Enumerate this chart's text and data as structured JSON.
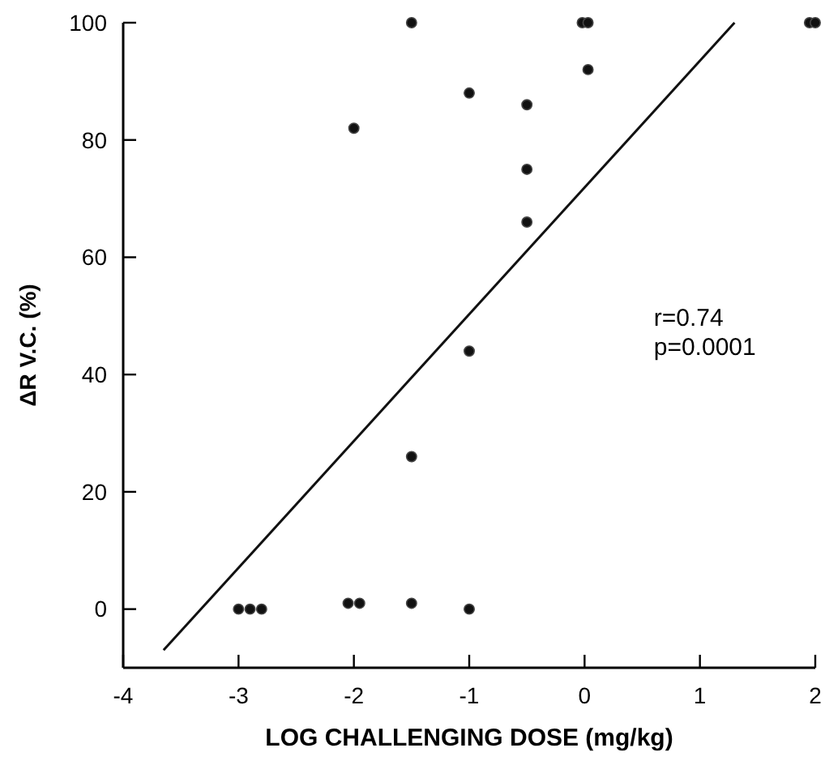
{
  "chart_data": {
    "type": "scatter",
    "xlabel": "LOG CHALLENGING DOSE (mg/kg)",
    "ylabel": "ΔR V.C. (%)",
    "xlim": [
      -4,
      2
    ],
    "ylim": [
      -10,
      100
    ],
    "xticks": [
      -4,
      -3,
      -2,
      -1,
      0,
      1,
      2
    ],
    "yticks": [
      0,
      20,
      40,
      60,
      80,
      100
    ],
    "marker": "circle",
    "grid": false,
    "annotations": [
      "r=0.74\np=0.0001"
    ],
    "series": [
      {
        "color": "#111111",
        "x": [
          -3,
          -2.9,
          -2.8,
          -2.05,
          -1.95,
          -1.5,
          -1,
          -1.5,
          -1,
          -2,
          -1.5,
          -1,
          -0.5,
          -0.5,
          -0.5,
          -0.02,
          0.03,
          0.03,
          1.95,
          2
        ],
        "values": [
          0,
          0,
          0,
          1,
          1,
          1,
          0,
          26,
          44,
          82,
          100,
          88,
          86,
          75,
          66,
          100,
          100,
          92,
          100,
          100
        ]
      },
      {
        "type": "line",
        "color": "#111111",
        "marker": "none",
        "x": [
          -3.65,
          1.3
        ],
        "values": [
          -7,
          100
        ]
      }
    ]
  }
}
